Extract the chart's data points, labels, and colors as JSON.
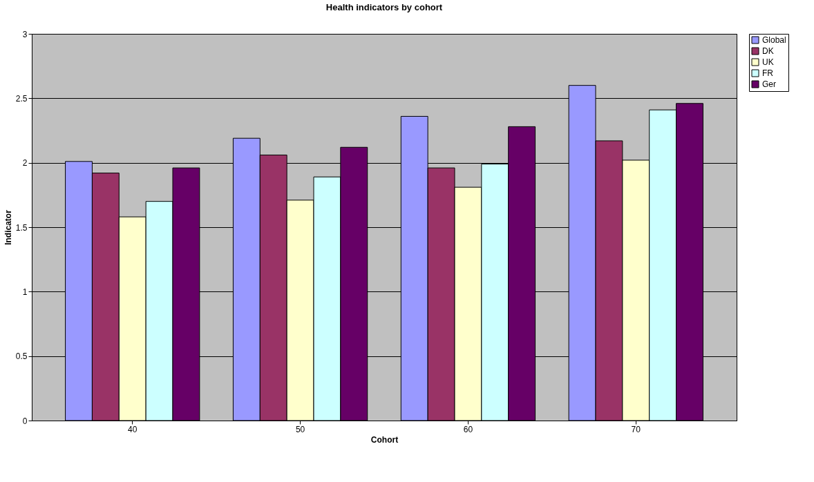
{
  "chart_data": {
    "type": "bar",
    "title": "Health indicators by cohort",
    "xlabel": "Cohort",
    "ylabel": "Indicator",
    "categories": [
      "40",
      "50",
      "60",
      "70"
    ],
    "series": [
      {
        "name": "Global",
        "color": "#9999ff",
        "values": [
          2.01,
          2.19,
          2.36,
          2.6
        ]
      },
      {
        "name": "DK",
        "color": "#993366",
        "values": [
          1.92,
          2.06,
          1.96,
          2.17
        ]
      },
      {
        "name": "UK",
        "color": "#ffffcc",
        "values": [
          1.58,
          1.71,
          1.81,
          2.02
        ]
      },
      {
        "name": "FR",
        "color": "#ccffff",
        "values": [
          1.7,
          1.89,
          1.99,
          2.41
        ]
      },
      {
        "name": "Ger",
        "color": "#660066",
        "values": [
          1.96,
          2.12,
          2.28,
          2.46
        ]
      }
    ],
    "ylim": [
      0,
      3
    ],
    "yticks": [
      0,
      0.5,
      1,
      1.5,
      2,
      2.5,
      3
    ],
    "grid": "y",
    "legend": "right"
  }
}
